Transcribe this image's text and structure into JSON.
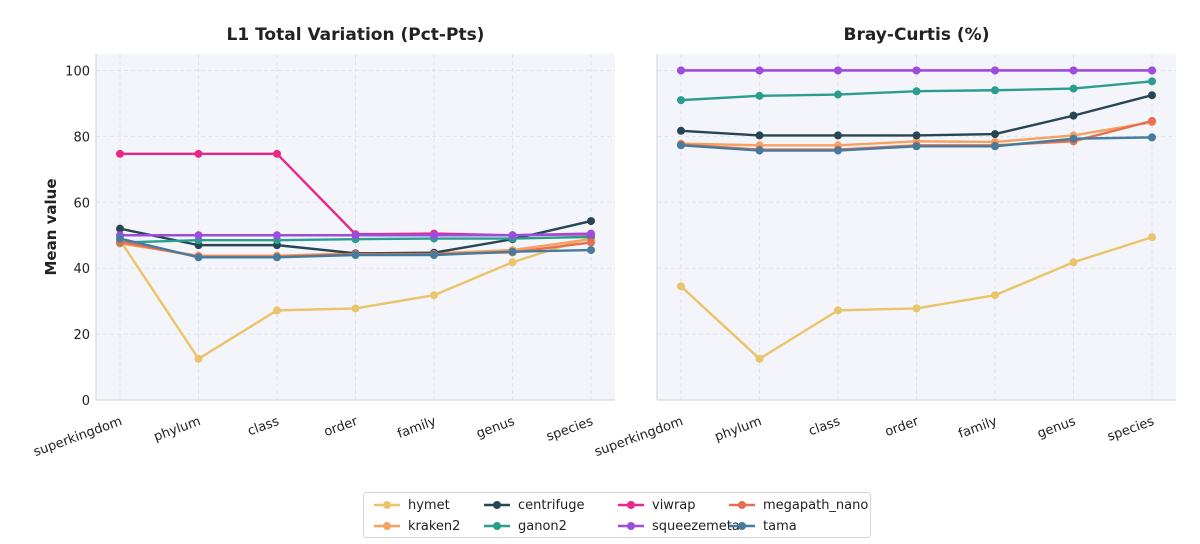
{
  "chart_data": [
    {
      "type": "line",
      "title": "L1 Total Variation (Pct-Pts)",
      "ylabel": "Mean value",
      "categories": [
        "superkingdom",
        "phylum",
        "class",
        "order",
        "family",
        "genus",
        "species"
      ],
      "ylim": [
        0,
        105
      ],
      "yticks": [
        0,
        20,
        40,
        60,
        80,
        100
      ],
      "grid": true,
      "series": [
        {
          "name": "hymet",
          "color": "#E9C46A",
          "values": [
            48.5,
            12.5,
            27.2,
            27.8,
            31.8,
            41.8,
            49.4
          ]
        },
        {
          "name": "kraken2",
          "color": "#F4A261",
          "values": [
            47.5,
            43.8,
            43.8,
            44.5,
            44.5,
            45.5,
            48.8
          ]
        },
        {
          "name": "centrifuge",
          "color": "#264653",
          "values": [
            52.0,
            47.0,
            47.0,
            44.5,
            44.7,
            48.8,
            54.3
          ]
        },
        {
          "name": "ganon2",
          "color": "#2A9D8F",
          "values": [
            47.8,
            48.5,
            48.5,
            48.8,
            49.0,
            49.0,
            49.5
          ]
        },
        {
          "name": "viwrap",
          "color": "#E9278A",
          "values": [
            74.7,
            74.7,
            74.7,
            50.3,
            50.5,
            50.0,
            50.3
          ]
        },
        {
          "name": "squeezemeta",
          "color": "#9B4DDE",
          "values": [
            50.0,
            50.0,
            50.0,
            50.0,
            50.0,
            50.0,
            50.5
          ]
        },
        {
          "name": "megapath_nano",
          "color": "#E76F51",
          "values": [
            48.0,
            43.5,
            43.5,
            44.3,
            44.3,
            44.8,
            47.8
          ]
        },
        {
          "name": "tama",
          "color": "#457B9D",
          "values": [
            49.0,
            43.3,
            43.3,
            44.0,
            44.0,
            45.0,
            45.5
          ]
        }
      ]
    },
    {
      "type": "line",
      "title": "Bray-Curtis (%)",
      "ylabel": "",
      "categories": [
        "superkingdom",
        "phylum",
        "class",
        "order",
        "family",
        "genus",
        "species"
      ],
      "ylim": [
        0,
        105
      ],
      "yticks": [
        0,
        20,
        40,
        60,
        80,
        100
      ],
      "grid": true,
      "series": [
        {
          "name": "hymet",
          "color": "#E9C46A",
          "values": [
            34.5,
            12.5,
            27.2,
            27.8,
            31.8,
            41.8,
            49.4
          ]
        },
        {
          "name": "kraken2",
          "color": "#F4A261",
          "values": [
            77.8,
            77.3,
            77.3,
            78.5,
            78.3,
            80.3,
            84.3
          ]
        },
        {
          "name": "centrifuge",
          "color": "#264653",
          "values": [
            81.7,
            80.3,
            80.3,
            80.3,
            80.7,
            86.3,
            92.5
          ]
        },
        {
          "name": "ganon2",
          "color": "#2A9D8F",
          "values": [
            91.0,
            92.3,
            92.7,
            93.7,
            94.0,
            94.5,
            96.7
          ]
        },
        {
          "name": "viwrap",
          "color": "#E9278A",
          "values": [
            100.0,
            100.0,
            100.0,
            100.0,
            100.0,
            100.0,
            100.0
          ]
        },
        {
          "name": "squeezemeta",
          "color": "#9B4DDE",
          "values": [
            100.0,
            100.0,
            100.0,
            100.0,
            100.0,
            100.0,
            100.0
          ]
        },
        {
          "name": "megapath_nano",
          "color": "#E76F51",
          "values": [
            77.5,
            76.0,
            76.0,
            77.3,
            77.3,
            78.5,
            84.7
          ]
        },
        {
          "name": "tama",
          "color": "#457B9D",
          "values": [
            77.3,
            75.7,
            75.7,
            77.0,
            77.0,
            79.3,
            79.7
          ]
        }
      ]
    }
  ],
  "legend": {
    "position": "bottom-center",
    "items": [
      {
        "name": "hymet",
        "color": "#E9C46A"
      },
      {
        "name": "kraken2",
        "color": "#F4A261"
      },
      {
        "name": "centrifuge",
        "color": "#264653"
      },
      {
        "name": "ganon2",
        "color": "#2A9D8F"
      },
      {
        "name": "viwrap",
        "color": "#E9278A"
      },
      {
        "name": "squeezemeta",
        "color": "#9B4DDE"
      },
      {
        "name": "megapath_nano",
        "color": "#E76F51"
      },
      {
        "name": "tama",
        "color": "#457B9D"
      }
    ]
  }
}
